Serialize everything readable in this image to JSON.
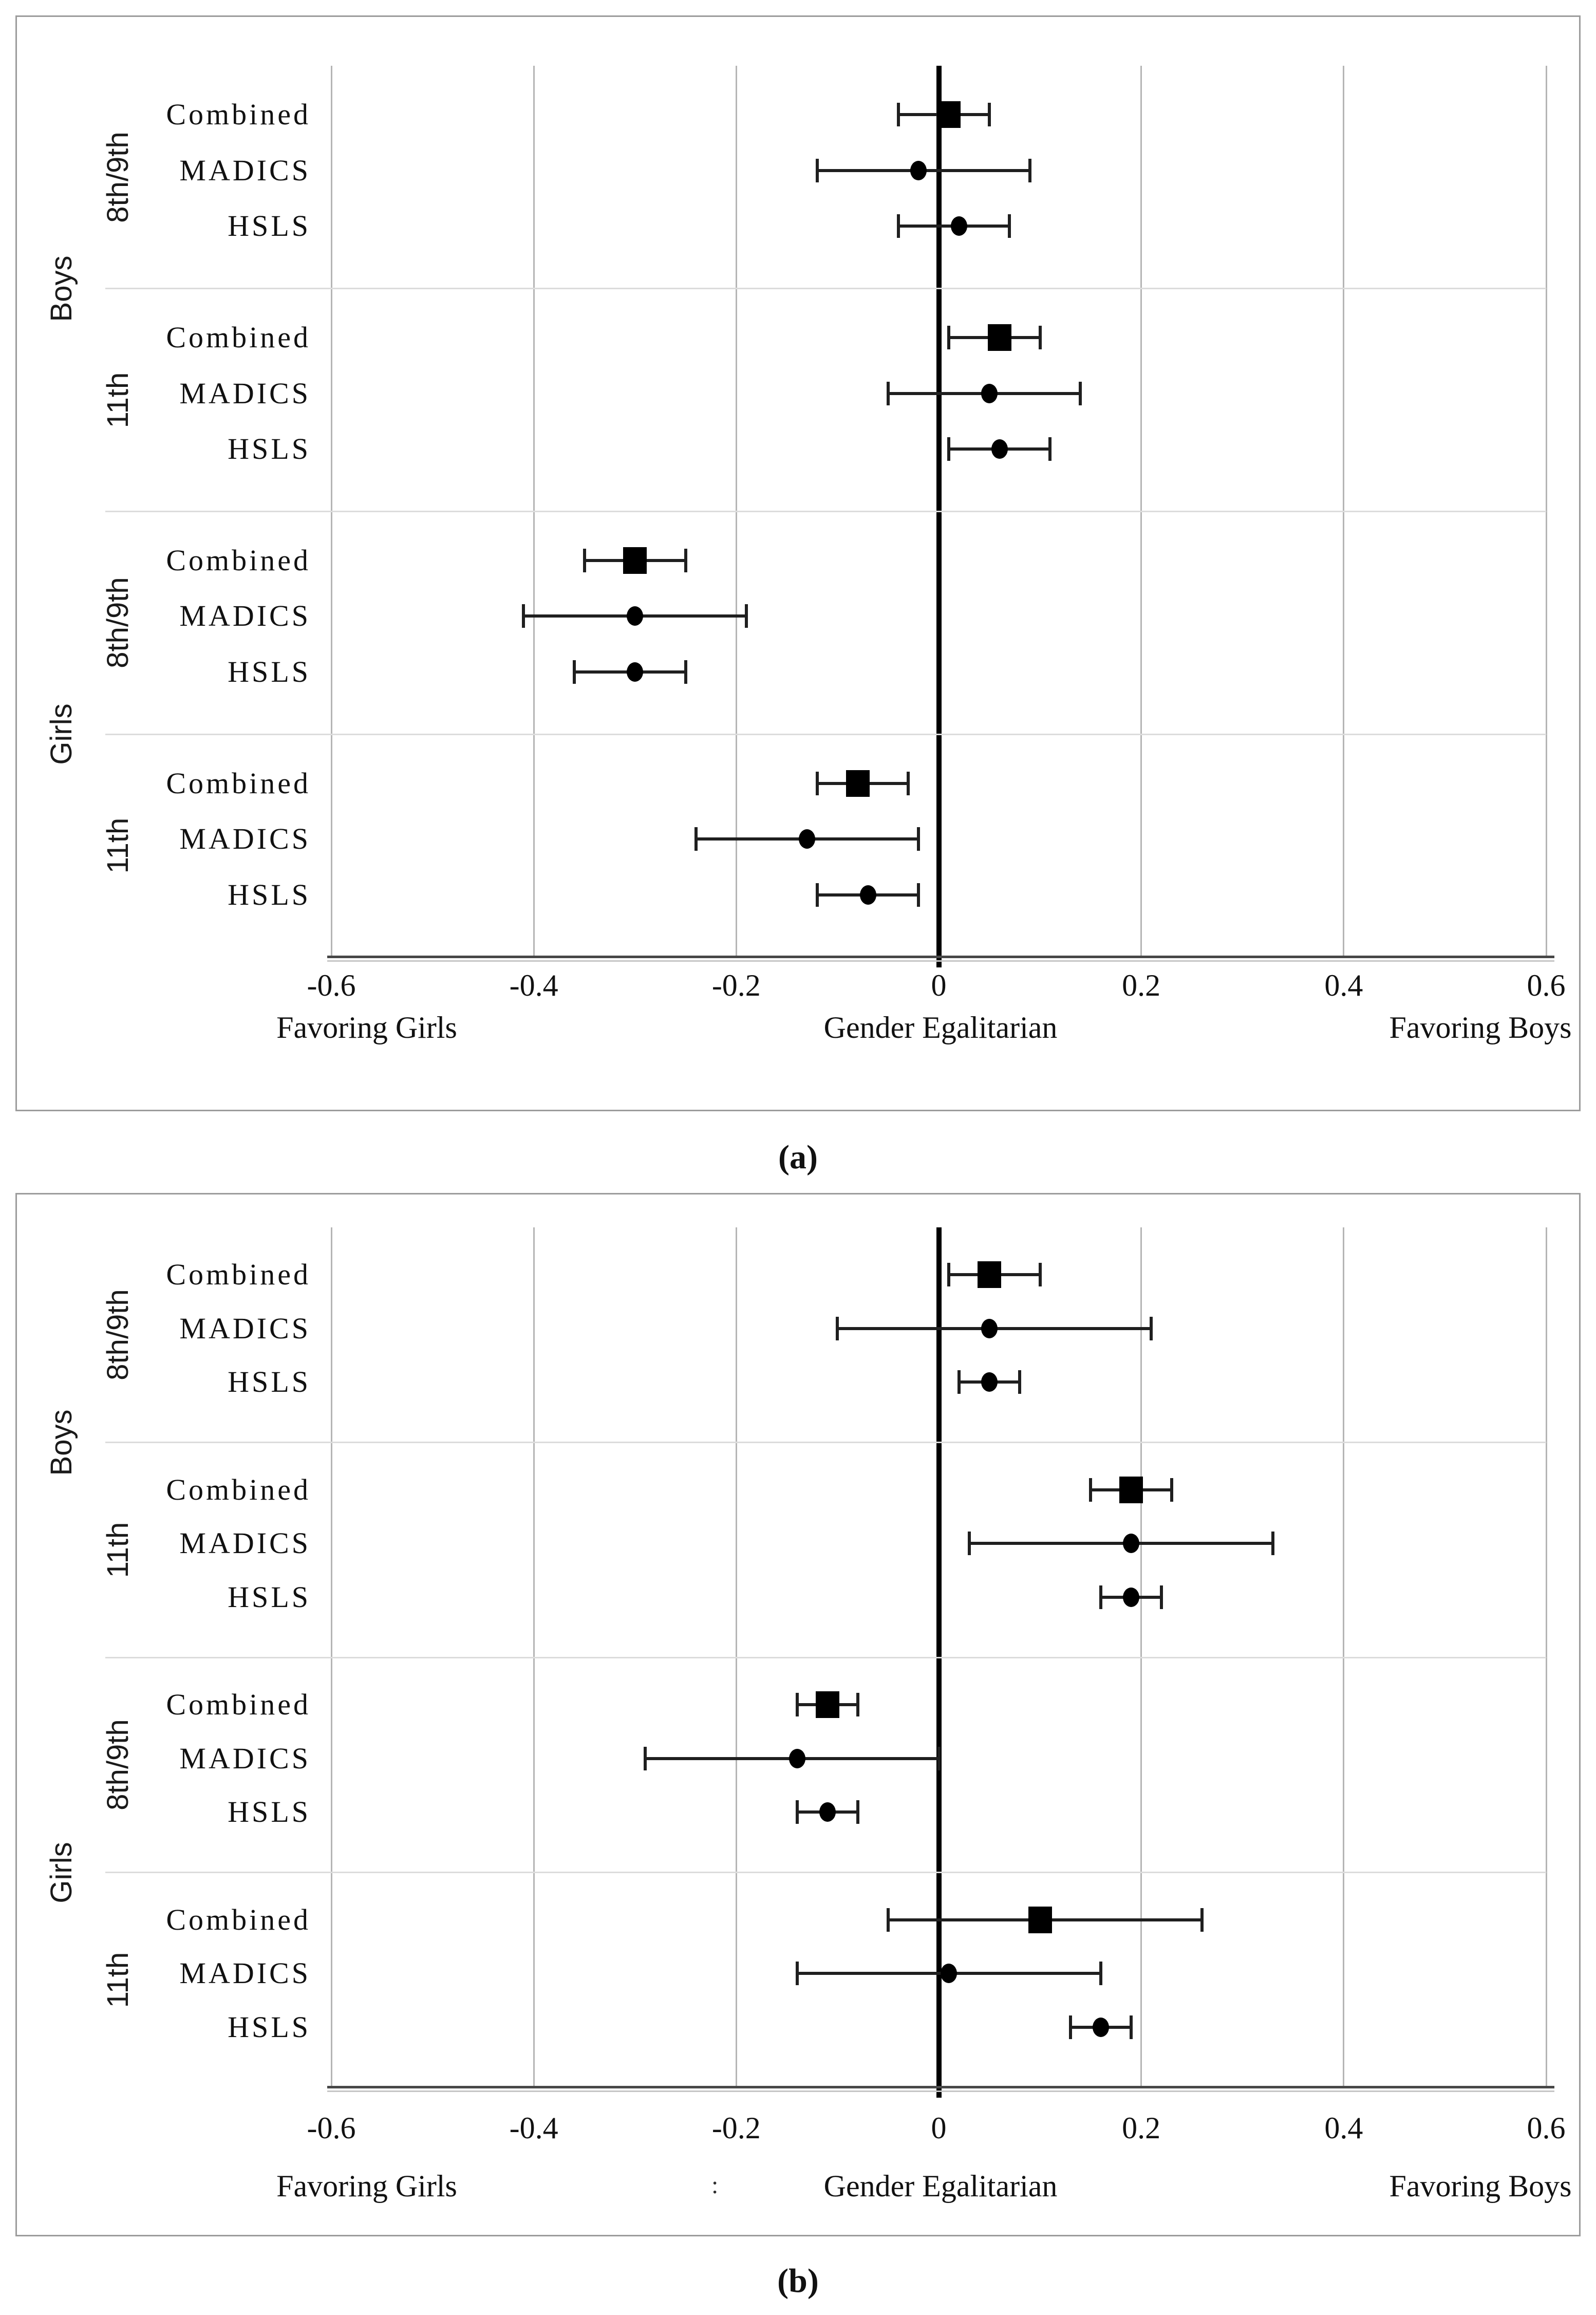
{
  "figure": {
    "background": "#ffffff",
    "panel_border_color": "#9c9c9c"
  },
  "chart_data": {
    "type": "forest",
    "x_axis": {
      "min": -0.6,
      "max": 0.6,
      "ticks": [
        -0.6,
        -0.4,
        -0.2,
        0,
        0.2,
        0.4,
        0.6
      ],
      "tick_labels": [
        "-0.6",
        "-0.4",
        "-0.2",
        "0",
        "0.2",
        "0.4",
        "0.6"
      ],
      "gridlines": true,
      "zero_reference_line": true,
      "left_annotation": "Favoring Girls",
      "center_annotation": "Gender Egalitarian",
      "right_annotation": "Favoring Boys"
    },
    "style": {
      "marker_color": "#000000",
      "errorbar_color": "#1f1f1f",
      "gridline_color": "#b5b5b5",
      "separator_color": "#dcdcdc",
      "zero_line_color": "#000000",
      "axis_line_color": "#474747",
      "text_color": "#111111"
    },
    "panels": [
      {
        "caption": "(a)",
        "groups": [
          {
            "gender": "Boys",
            "grade": "8th/9th",
            "rows": [
              {
                "label": "Combined",
                "marker": "square",
                "estimate": 0.01,
                "ci_low": -0.04,
                "ci_high": 0.05
              },
              {
                "label": "MADICS",
                "marker": "circle",
                "estimate": -0.02,
                "ci_low": -0.12,
                "ci_high": 0.09
              },
              {
                "label": "HSLS",
                "marker": "circle",
                "estimate": 0.02,
                "ci_low": -0.04,
                "ci_high": 0.07
              }
            ]
          },
          {
            "gender": "Boys",
            "grade": "11th",
            "rows": [
              {
                "label": "Combined",
                "marker": "square",
                "estimate": 0.06,
                "ci_low": 0.01,
                "ci_high": 0.1
              },
              {
                "label": "MADICS",
                "marker": "circle",
                "estimate": 0.05,
                "ci_low": -0.05,
                "ci_high": 0.14
              },
              {
                "label": "HSLS",
                "marker": "circle",
                "estimate": 0.06,
                "ci_low": 0.01,
                "ci_high": 0.11
              }
            ]
          },
          {
            "gender": "Girls",
            "grade": "8th/9th",
            "rows": [
              {
                "label": "Combined",
                "marker": "square",
                "estimate": -0.3,
                "ci_low": -0.35,
                "ci_high": -0.25
              },
              {
                "label": "MADICS",
                "marker": "circle",
                "estimate": -0.3,
                "ci_low": -0.41,
                "ci_high": -0.19
              },
              {
                "label": "HSLS",
                "marker": "circle",
                "estimate": -0.3,
                "ci_low": -0.36,
                "ci_high": -0.25
              }
            ]
          },
          {
            "gender": "Girls",
            "grade": "11th",
            "rows": [
              {
                "label": "Combined",
                "marker": "square",
                "estimate": -0.08,
                "ci_low": -0.12,
                "ci_high": -0.03
              },
              {
                "label": "MADICS",
                "marker": "circle",
                "estimate": -0.13,
                "ci_low": -0.24,
                "ci_high": -0.02
              },
              {
                "label": "HSLS",
                "marker": "circle",
                "estimate": -0.07,
                "ci_low": -0.12,
                "ci_high": -0.02
              }
            ]
          }
        ]
      },
      {
        "caption": "(b)",
        "stray_mark": ":",
        "groups": [
          {
            "gender": "Boys",
            "grade": "8th/9th",
            "rows": [
              {
                "label": "Combined",
                "marker": "square",
                "estimate": 0.05,
                "ci_low": 0.01,
                "ci_high": 0.1
              },
              {
                "label": "MADICS",
                "marker": "circle",
                "estimate": 0.05,
                "ci_low": -0.1,
                "ci_high": 0.21
              },
              {
                "label": "HSLS",
                "marker": "circle",
                "estimate": 0.05,
                "ci_low": 0.02,
                "ci_high": 0.08
              }
            ]
          },
          {
            "gender": "Boys",
            "grade": "11th",
            "rows": [
              {
                "label": "Combined",
                "marker": "square",
                "estimate": 0.19,
                "ci_low": 0.15,
                "ci_high": 0.23
              },
              {
                "label": "MADICS",
                "marker": "circle",
                "estimate": 0.19,
                "ci_low": 0.03,
                "ci_high": 0.33
              },
              {
                "label": "HSLS",
                "marker": "circle",
                "estimate": 0.19,
                "ci_low": 0.16,
                "ci_high": 0.22
              }
            ]
          },
          {
            "gender": "Girls",
            "grade": "8th/9th",
            "rows": [
              {
                "label": "Combined",
                "marker": "square",
                "estimate": -0.11,
                "ci_low": -0.14,
                "ci_high": -0.08
              },
              {
                "label": "MADICS",
                "marker": "circle",
                "estimate": -0.14,
                "ci_low": -0.29,
                "ci_high": 0.0
              },
              {
                "label": "HSLS",
                "marker": "circle",
                "estimate": -0.11,
                "ci_low": -0.14,
                "ci_high": -0.08
              }
            ]
          },
          {
            "gender": "Girls",
            "grade": "11th",
            "rows": [
              {
                "label": "Combined",
                "marker": "square",
                "estimate": 0.1,
                "ci_low": -0.05,
                "ci_high": 0.26
              },
              {
                "label": "MADICS",
                "marker": "circle",
                "estimate": 0.01,
                "ci_low": -0.14,
                "ci_high": 0.16
              },
              {
                "label": "HSLS",
                "marker": "circle",
                "estimate": 0.16,
                "ci_low": 0.13,
                "ci_high": 0.19
              }
            ]
          }
        ]
      }
    ]
  }
}
